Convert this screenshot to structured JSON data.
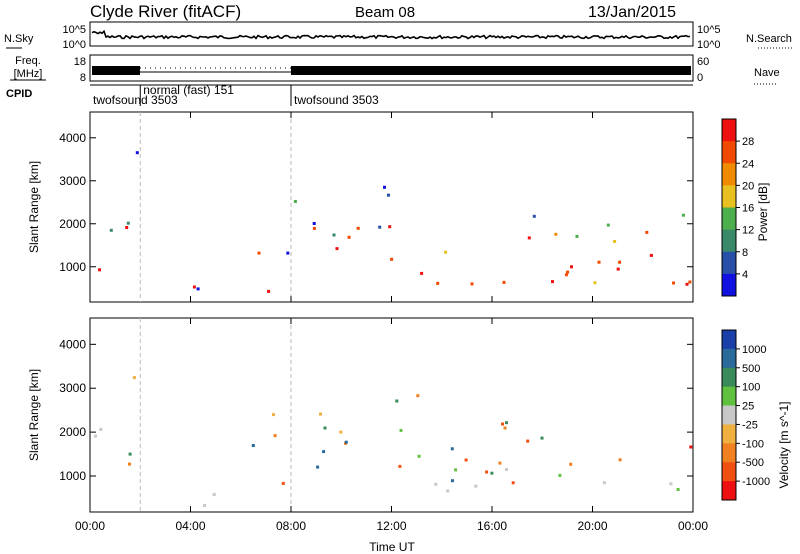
{
  "header": {
    "station": "Clyde River (fitACF)",
    "beam": "Beam 08",
    "date": "13/Jan/2015"
  },
  "panels": {
    "nsky_label": "N.Sky",
    "nsearch_label": "N.Search",
    "nsky_ticks": [
      "10^5",
      "10^0"
    ],
    "nsearch_ticks": [
      "10^5",
      "10^0"
    ],
    "freq_label_top": "Freq.",
    "freq_label_unit": "[MHz]",
    "freq_ticks": [
      "18",
      "8"
    ],
    "nave_label": "Nave",
    "nave_ticks": [
      "60",
      "0"
    ],
    "cpid_label": "CPID",
    "cpid_segments": [
      {
        "name": "twofsound",
        "id": "3503",
        "start_h": 0,
        "end_h": 2
      },
      {
        "name": "normal (fast)",
        "id": "151",
        "start_h": 2,
        "end_h": 8
      },
      {
        "name": "twofsound",
        "id": "3503",
        "start_h": 8,
        "end_h": 24
      }
    ]
  },
  "chart_data": [
    {
      "type": "heatmap",
      "quantity": "Power",
      "ylabel": "Slant Range [km]",
      "colorbar_label": "Power [dB]",
      "colorbar_ticks": [
        "28",
        "24",
        "20",
        "16",
        "12",
        "8",
        "4"
      ],
      "colors": [
        "#1010e0",
        "#2850a8",
        "#3a8a6a",
        "#4cae4c",
        "#e8c020",
        "#f08a00",
        "#f04a00",
        "#ee1010"
      ],
      "ylim": [
        180,
        4600
      ],
      "yticks": [
        "4000",
        "3000",
        "2000",
        "1000"
      ],
      "ytick_values": [
        4000,
        3000,
        2000,
        1000
      ],
      "dominant_range_km": [
        500,
        1500
      ]
    },
    {
      "type": "heatmap",
      "quantity": "Velocity",
      "ylabel": "Slant Range [km]",
      "xlabel": "Time UT",
      "colorbar_label": "Velocity [m s^-1]",
      "colorbar_ticks": [
        "1000",
        "500",
        "100",
        "25",
        "-25",
        "-100",
        "-500",
        "-1000"
      ],
      "colors": [
        "#1a3fa8",
        "#2a6a9a",
        "#3a8a5a",
        "#60c040",
        "#c8c8c8",
        "#f0b040",
        "#f08020",
        "#f05010",
        "#ee1010"
      ],
      "ylim": [
        180,
        4600
      ],
      "yticks": [
        "4000",
        "3000",
        "2000",
        "1000"
      ],
      "ytick_values": [
        4000,
        3000,
        2000,
        1000
      ],
      "xticks": [
        "00:00",
        "04:00",
        "08:00",
        "12:00",
        "16:00",
        "20:00",
        "00:00"
      ],
      "xtick_hours": [
        0,
        4,
        8,
        12,
        16,
        20,
        24
      ]
    }
  ]
}
